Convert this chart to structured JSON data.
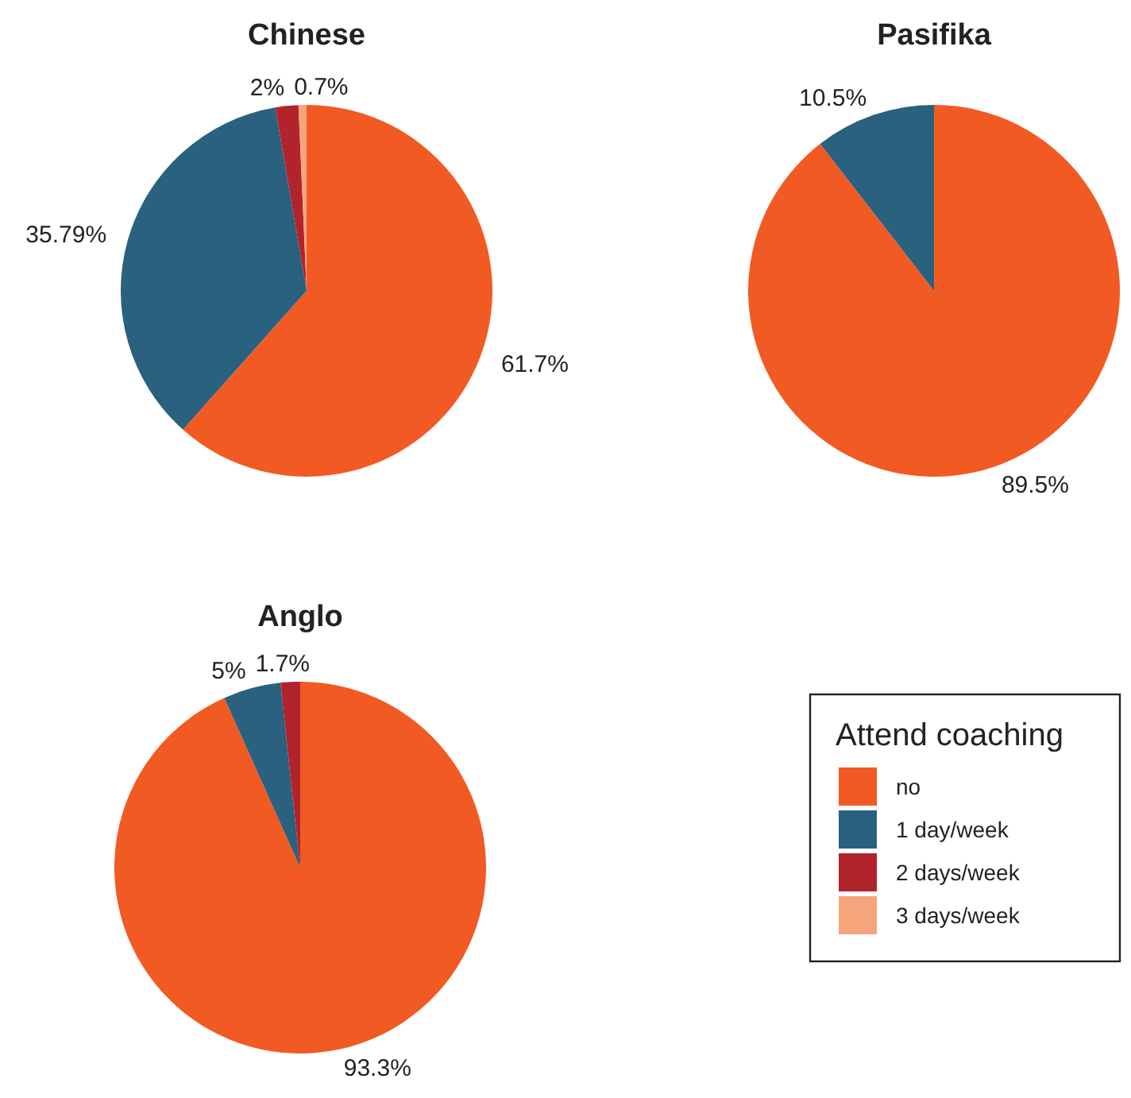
{
  "chart_data": [
    {
      "type": "pie",
      "title": "Chinese",
      "categories": [
        "no",
        "1 day/week",
        "2 days/week",
        "3 days/week"
      ],
      "values": [
        61.7,
        35.79,
        2,
        0.7
      ],
      "colors": [
        "#f15a22",
        "#29617f",
        "#b2242c",
        "#f6a47c"
      ],
      "value_labels": [
        "61.7%",
        "35.79%",
        "2%",
        "0.7%"
      ],
      "legend": "bottom right",
      "legend_title": "Attend coaching"
    },
    {
      "type": "pie",
      "title": "Pasifika",
      "categories": [
        null,
        null
      ],
      "values": [
        89.5,
        10.5
      ],
      "colors": [
        "#f15a22",
        "#29617f"
      ],
      "value_labels": [
        "89.5%",
        "10.5%"
      ]
    },
    {
      "type": "pie",
      "title": "Anglo",
      "categories": [
        null,
        null,
        null
      ],
      "values": [
        93.3,
        5,
        1.7
      ],
      "colors": [
        "#f15a22",
        "#29617f",
        "#b2242c"
      ],
      "value_labels": [
        "93.3%",
        "5%",
        "1.7%"
      ]
    }
  ]
}
